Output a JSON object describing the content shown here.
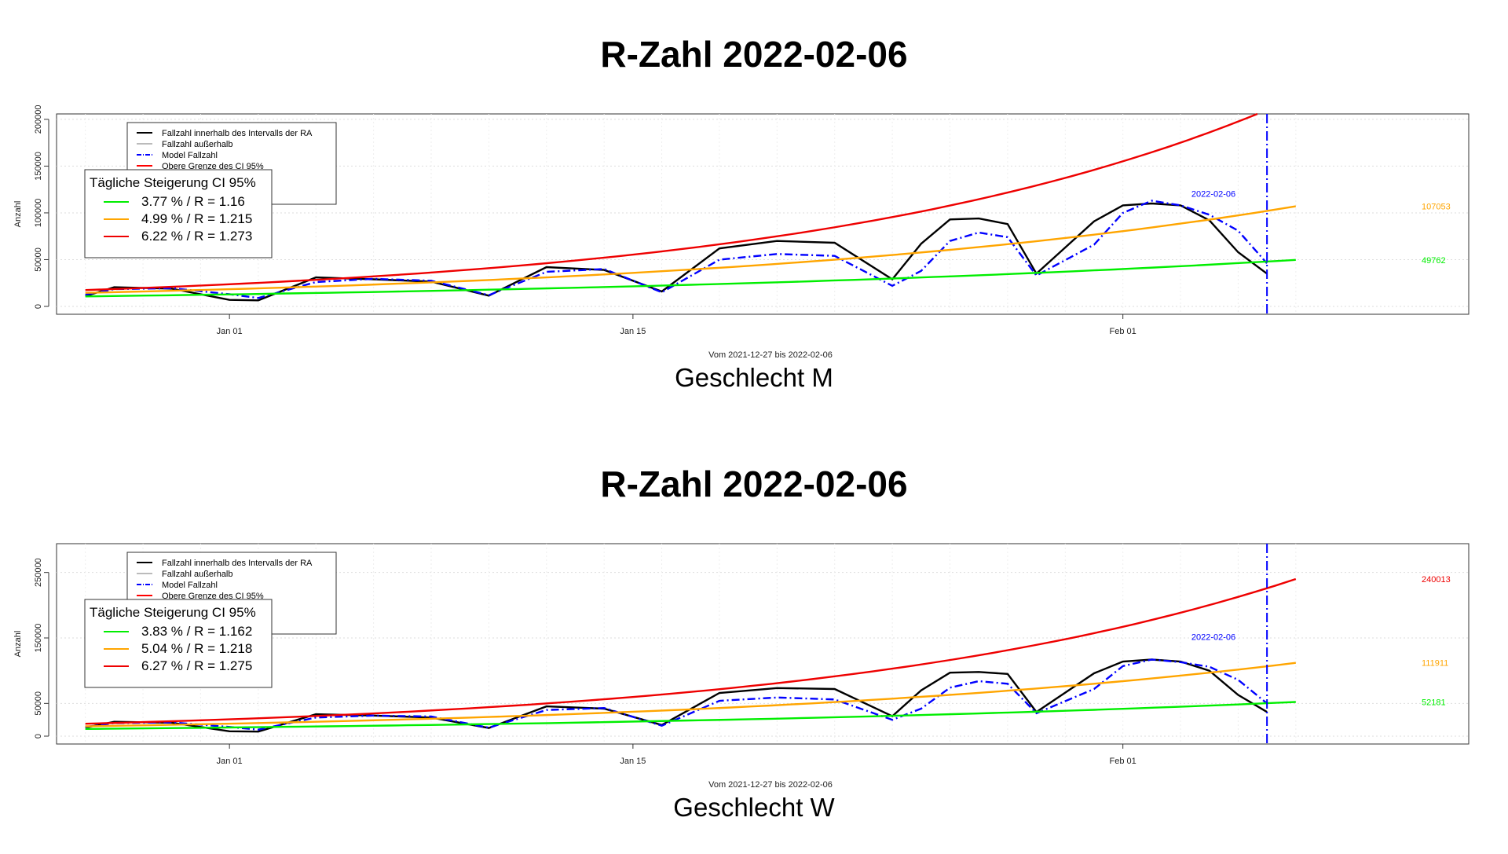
{
  "chart_data": [
    {
      "type": "line",
      "title": "R-Zahl 2022-02-06",
      "subtitle": "Geschlecht M",
      "xlabel": "Vom 2021-12-27 bis 2022-02-06",
      "ylabel": "Anzahl",
      "ylim": [
        0,
        210000
      ],
      "yticks": [
        0,
        50000,
        100000,
        150000,
        200000
      ],
      "xticks": [
        "Jan 01",
        "Jan 15",
        "Feb 01"
      ],
      "xlim": [
        "2021-12-26",
        "2022-02-13"
      ],
      "grid": true,
      "vline": {
        "date": "2022-02-06",
        "label": "2022-02-06",
        "color": "#0000ff"
      },
      "legend1": {
        "position": "top-left",
        "entries": [
          "Fallzahl innerhalb des Intervalls der RA",
          "Fallzahl außerhalb",
          "Model Fallzahl",
          "Obere Grenze des CI 95%"
        ],
        "colors": [
          "#000000",
          "#bbbbbb",
          "#0000ff",
          "#ff0000"
        ],
        "styles": [
          "solid",
          "solid",
          "dashdot",
          "solid"
        ]
      },
      "legend2": {
        "title": "Tägliche Steigerung CI  95%",
        "entries": [
          "3.77 % / R = 1.16",
          "4.99 % / R = 1.215",
          "6.22 % / R = 1.273"
        ],
        "colors": [
          "#00ee00",
          "#ffa500",
          "#ee0000"
        ]
      },
      "end_labels": [
        {
          "value": 107053,
          "text": "107053",
          "color": "#ffa500"
        },
        {
          "value": 49762,
          "text": "49762",
          "color": "#00ee00"
        }
      ],
      "series": [
        {
          "name": "Fallzahl innerhalb des Intervalls der RA",
          "color": "#000000",
          "style": "solid",
          "x": [
            "2021-12-27",
            "2021-12-28",
            "2021-12-30",
            "2022-01-01",
            "2022-01-02",
            "2022-01-04",
            "2022-01-06",
            "2022-01-08",
            "2022-01-10",
            "2022-01-12",
            "2022-01-14",
            "2022-01-16",
            "2022-01-18",
            "2022-01-20",
            "2022-01-22",
            "2022-01-24",
            "2022-01-25",
            "2022-01-26",
            "2022-01-27",
            "2022-01-28",
            "2022-01-29",
            "2022-01-31",
            "2022-02-01",
            "2022-02-02",
            "2022-02-03",
            "2022-02-04",
            "2022-02-05",
            "2022-02-06"
          ],
          "values": [
            11000,
            20500,
            19000,
            7000,
            6500,
            31000,
            29000,
            26500,
            11500,
            42000,
            39000,
            16000,
            62000,
            70000,
            68000,
            29000,
            67000,
            93000,
            94000,
            88000,
            35000,
            91000,
            108000,
            110000,
            108000,
            92000,
            58000,
            35000
          ]
        },
        {
          "name": "Model Fallzahl",
          "color": "#0000ff",
          "style": "dashdot",
          "x": [
            "2021-12-27",
            "2021-12-28",
            "2021-12-30",
            "2022-01-01",
            "2022-01-02",
            "2022-01-04",
            "2022-01-06",
            "2022-01-08",
            "2022-01-10",
            "2022-01-12",
            "2022-01-14",
            "2022-01-16",
            "2022-01-18",
            "2022-01-20",
            "2022-01-22",
            "2022-01-24",
            "2022-01-25",
            "2022-01-26",
            "2022-01-27",
            "2022-01-28",
            "2022-01-29",
            "2022-01-31",
            "2022-02-01",
            "2022-02-02",
            "2022-02-03",
            "2022-02-04",
            "2022-02-05",
            "2022-02-06"
          ],
          "values": [
            12500,
            18500,
            19500,
            13000,
            9000,
            26000,
            29500,
            27500,
            12000,
            37000,
            40000,
            15000,
            50000,
            56000,
            54000,
            22000,
            38000,
            70000,
            79000,
            74000,
            33000,
            66000,
            100000,
            113000,
            108000,
            98000,
            81000,
            46000
          ]
        },
        {
          "name": "Obere Grenze des CI 95%",
          "color": "#ee0000",
          "style": "solid",
          "x": [
            "2021-12-27",
            "2022-02-06"
          ],
          "values": [
            17500,
            210000
          ]
        },
        {
          "name": "",
          "color": "#ffa500",
          "style": "solid",
          "x": [
            "2021-12-27",
            "2022-02-07"
          ],
          "values": [
            14500,
            107053
          ]
        },
        {
          "name": "",
          "color": "#00ee00",
          "style": "solid",
          "x": [
            "2021-12-27",
            "2022-02-07"
          ],
          "values": [
            10700,
            49762
          ]
        }
      ]
    },
    {
      "type": "line",
      "title": "R-Zahl 2022-02-06",
      "subtitle": "Geschlecht W",
      "xlabel": "Vom 2021-12-27 bis 2022-02-06",
      "ylabel": "Anzahl",
      "ylim": [
        0,
        300000
      ],
      "yticks": [
        0,
        50000,
        150000,
        250000
      ],
      "xticks": [
        "Jan 01",
        "Jan 15",
        "Feb 01"
      ],
      "xlim": [
        "2021-12-26",
        "2022-02-13"
      ],
      "grid": true,
      "vline": {
        "date": "2022-02-06",
        "label": "2022-02-06",
        "color": "#0000ff"
      },
      "legend1": {
        "position": "top-left",
        "entries": [
          "Fallzahl innerhalb des Intervalls der RA",
          "Fallzahl außerhalb",
          "Model Fallzahl",
          "Obere Grenze des CI 95%"
        ],
        "colors": [
          "#000000",
          "#bbbbbb",
          "#0000ff",
          "#ff0000"
        ],
        "styles": [
          "solid",
          "solid",
          "dashdot",
          "solid"
        ]
      },
      "legend2": {
        "title": "Tägliche Steigerung CI  95%",
        "entries": [
          "3.83 % / R = 1.162",
          "5.04 % / R = 1.218",
          "6.27 % / R = 1.275"
        ],
        "colors": [
          "#00ee00",
          "#ffa500",
          "#ee0000"
        ]
      },
      "end_labels": [
        {
          "value": 240013,
          "text": "240013",
          "color": "#ee0000"
        },
        {
          "value": 111911,
          "text": "111911",
          "color": "#ffa500"
        },
        {
          "value": 52181,
          "text": "52181",
          "color": "#00ee00"
        }
      ],
      "series": [
        {
          "name": "Fallzahl innerhalb des Intervalls der RA",
          "color": "#000000",
          "style": "solid",
          "x": [
            "2021-12-27",
            "2021-12-28",
            "2021-12-30",
            "2022-01-01",
            "2022-01-02",
            "2022-01-04",
            "2022-01-06",
            "2022-01-08",
            "2022-01-10",
            "2022-01-12",
            "2022-01-14",
            "2022-01-16",
            "2022-01-18",
            "2022-01-20",
            "2022-01-22",
            "2022-01-24",
            "2022-01-25",
            "2022-01-26",
            "2022-01-27",
            "2022-01-28",
            "2022-01-29",
            "2022-01-31",
            "2022-02-01",
            "2022-02-02",
            "2022-02-03",
            "2022-02-04",
            "2022-02-05",
            "2022-02-06"
          ],
          "values": [
            13000,
            22000,
            20500,
            7500,
            7000,
            33500,
            31500,
            28500,
            12500,
            45500,
            42000,
            17000,
            66000,
            73500,
            72000,
            30500,
            70000,
            97000,
            98000,
            95000,
            37000,
            96000,
            114000,
            117000,
            114000,
            100000,
            63000,
            37000
          ]
        },
        {
          "name": "Model Fallzahl",
          "color": "#0000ff",
          "style": "dashdot",
          "x": [
            "2021-12-27",
            "2021-12-28",
            "2021-12-30",
            "2022-01-01",
            "2022-01-02",
            "2022-01-04",
            "2022-01-06",
            "2022-01-08",
            "2022-01-10",
            "2022-01-12",
            "2022-01-14",
            "2022-01-16",
            "2022-01-18",
            "2022-01-20",
            "2022-01-22",
            "2022-01-24",
            "2022-01-25",
            "2022-01-26",
            "2022-01-27",
            "2022-01-28",
            "2022-01-29",
            "2022-01-31",
            "2022-02-01",
            "2022-02-02",
            "2022-02-03",
            "2022-02-04",
            "2022-02-05",
            "2022-02-06"
          ],
          "values": [
            14000,
            20000,
            21000,
            14000,
            10000,
            28500,
            31500,
            30000,
            13000,
            40000,
            43000,
            16000,
            54000,
            59000,
            56000,
            25000,
            42000,
            74000,
            84000,
            80000,
            35000,
            72000,
            107000,
            117000,
            113000,
            106000,
            86000,
            50000
          ]
        },
        {
          "name": "Obere Grenze des CI 95%",
          "color": "#ee0000",
          "style": "solid",
          "x": [
            "2021-12-27",
            "2022-02-07"
          ],
          "values": [
            19000,
            240013
          ]
        },
        {
          "name": "",
          "color": "#ffa500",
          "style": "solid",
          "x": [
            "2021-12-27",
            "2022-02-07"
          ],
          "values": [
            15000,
            111911
          ]
        },
        {
          "name": "",
          "color": "#00ee00",
          "style": "solid",
          "x": [
            "2021-12-27",
            "2022-02-07"
          ],
          "values": [
            11000,
            52181
          ]
        }
      ]
    }
  ]
}
